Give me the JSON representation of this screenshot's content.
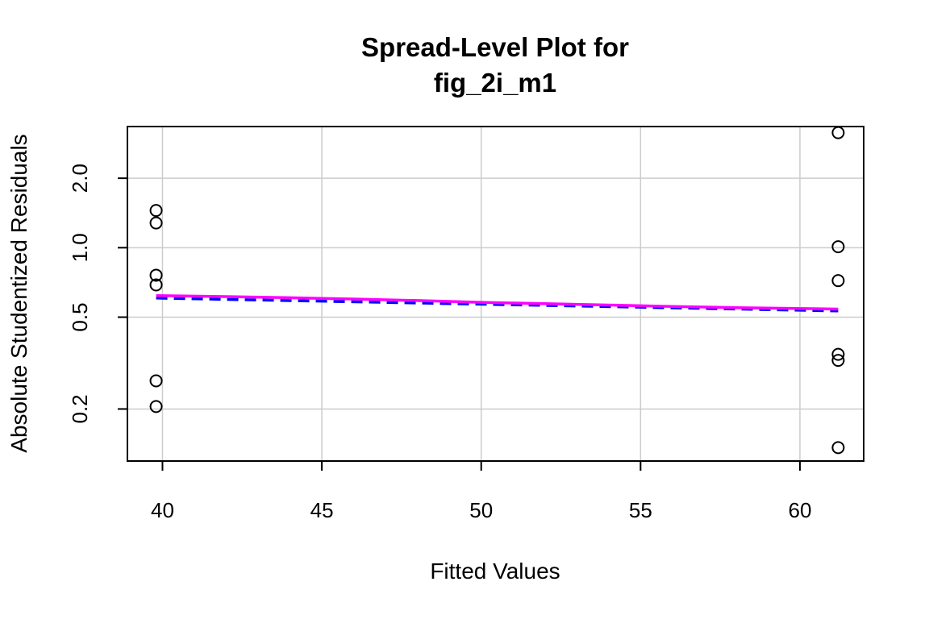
{
  "chart_data": {
    "type": "scatter",
    "title_lines": [
      "Spread-Level Plot for",
      "fig_2i_m1"
    ],
    "xlabel": "Fitted Values",
    "ylabel": "Absolute Studentized Residuals",
    "xlim": [
      38.9,
      62.0
    ],
    "ylim": [
      0.119,
      3.35
    ],
    "y_scale": "log",
    "grid": true,
    "x_ticks": [
      40,
      45,
      50,
      55,
      60
    ],
    "y_ticks": [
      0.2,
      0.5,
      1.0,
      2.0
    ],
    "y_tick_labels": [
      "0.2",
      "0.5",
      "1.0",
      "2.0"
    ],
    "points": [
      {
        "x": 39.8,
        "y": 1.45
      },
      {
        "x": 39.8,
        "y": 1.28
      },
      {
        "x": 39.8,
        "y": 0.76
      },
      {
        "x": 39.8,
        "y": 0.69
      },
      {
        "x": 39.8,
        "y": 0.265
      },
      {
        "x": 39.8,
        "y": 0.205
      },
      {
        "x": 61.2,
        "y": 3.15
      },
      {
        "x": 61.2,
        "y": 1.01
      },
      {
        "x": 61.2,
        "y": 0.72
      },
      {
        "x": 61.2,
        "y": 0.345
      },
      {
        "x": 61.2,
        "y": 0.325
      },
      {
        "x": 61.2,
        "y": 0.136
      }
    ],
    "lines": [
      {
        "style": "dashed",
        "color": "#0000ff",
        "x": [
          39.8,
          61.2
        ],
        "y": [
          0.605,
          0.532
        ]
      },
      {
        "style": "solid",
        "color": "#ff00ff",
        "x": [
          39.8,
          42,
          44,
          46,
          48,
          50,
          52,
          54,
          56,
          58,
          61.2
        ],
        "y": [
          0.62,
          0.614,
          0.607,
          0.599,
          0.59,
          0.58,
          0.572,
          0.564,
          0.556,
          0.55,
          0.542
        ]
      }
    ],
    "colors": {
      "points": "#000000",
      "grid": "#cccccc",
      "frame": "#000000"
    }
  }
}
